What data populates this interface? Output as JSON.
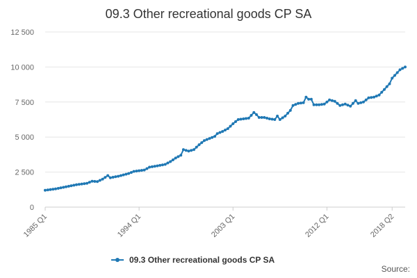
{
  "title": "09.3 Other recreational goods CP SA",
  "source_label": "Source:",
  "chart_data": {
    "type": "line",
    "title": "09.3 Other recreational goods CP SA",
    "xlabel": "",
    "ylabel": "",
    "ylim": [
      0,
      12500
    ],
    "yticks": [
      0,
      2500,
      5000,
      7500,
      10000,
      12500
    ],
    "ytick_labels": [
      "0",
      "2 500",
      "5 000",
      "7 500",
      "10 000",
      "12 500"
    ],
    "x_range": [
      "1985 Q1",
      "2018 Q2"
    ],
    "xtick_labels": [
      "1985 Q1",
      "1994 Q1",
      "2003 Q1",
      "2012 Q1",
      "2018 Q2"
    ],
    "grid": true,
    "legend_position": "bottom",
    "color": "#1f78b4",
    "series": [
      {
        "name": "09.3 Other recreational goods CP SA",
        "points": [
          [
            "1985 Q1",
            1200
          ],
          [
            "1986 Q1",
            1300
          ],
          [
            "1987 Q1",
            1450
          ],
          [
            "1988 Q1",
            1600
          ],
          [
            "1989 Q1",
            1700
          ],
          [
            "1989 Q3",
            1850
          ],
          [
            "1990 Q1",
            1820
          ],
          [
            "1990 Q3",
            2000
          ],
          [
            "1991 Q1",
            2250
          ],
          [
            "1991 Q2",
            2100
          ],
          [
            "1992 Q1",
            2200
          ],
          [
            "1993 Q1",
            2400
          ],
          [
            "1993 Q3",
            2550
          ],
          [
            "1994 Q1",
            2600
          ],
          [
            "1994 Q3",
            2650
          ],
          [
            "1995 Q1",
            2850
          ],
          [
            "1996 Q1",
            2980
          ],
          [
            "1996 Q3",
            3050
          ],
          [
            "1997 Q1",
            3250
          ],
          [
            "1997 Q3",
            3500
          ],
          [
            "1998 Q1",
            3700
          ],
          [
            "1998 Q2",
            4100
          ],
          [
            "1998 Q4",
            4000
          ],
          [
            "1999 Q2",
            4100
          ],
          [
            "1999 Q4",
            4450
          ],
          [
            "2000 Q2",
            4750
          ],
          [
            "2000 Q4",
            4900
          ],
          [
            "2001 Q2",
            5050
          ],
          [
            "2001 Q3",
            5250
          ],
          [
            "2002 Q1",
            5400
          ],
          [
            "2002 Q3",
            5600
          ],
          [
            "2003 Q1",
            5950
          ],
          [
            "2003 Q3",
            6250
          ],
          [
            "2004 Q1",
            6300
          ],
          [
            "2004 Q3",
            6350
          ],
          [
            "2005 Q1",
            6750
          ],
          [
            "2005 Q2",
            6600
          ],
          [
            "2005 Q3",
            6400
          ],
          [
            "2006 Q1",
            6400
          ],
          [
            "2006 Q3",
            6300
          ],
          [
            "2007 Q1",
            6250
          ],
          [
            "2007 Q2",
            6500
          ],
          [
            "2007 Q3",
            6250
          ],
          [
            "2008 Q1",
            6500
          ],
          [
            "2008 Q3",
            6900
          ],
          [
            "2008 Q4",
            7250
          ],
          [
            "2009 Q2",
            7400
          ],
          [
            "2009 Q4",
            7450
          ],
          [
            "2010 Q1",
            7850
          ],
          [
            "2010 Q2",
            7700
          ],
          [
            "2010 Q3",
            7700
          ],
          [
            "2010 Q4",
            7300
          ],
          [
            "2011 Q2",
            7300
          ],
          [
            "2011 Q4",
            7350
          ],
          [
            "2012 Q2",
            7650
          ],
          [
            "2012 Q4",
            7550
          ],
          [
            "2013 Q2",
            7250
          ],
          [
            "2013 Q4",
            7350
          ],
          [
            "2014 Q2",
            7200
          ],
          [
            "2014 Q4",
            7600
          ],
          [
            "2015 Q1",
            7400
          ],
          [
            "2015 Q3",
            7500
          ],
          [
            "2016 Q1",
            7800
          ],
          [
            "2016 Q3",
            7850
          ],
          [
            "2017 Q1",
            8000
          ],
          [
            "2017 Q3",
            8400
          ],
          [
            "2018 Q1",
            8800
          ],
          [
            "2018 Q2",
            9200
          ],
          [
            "2019 Q1",
            9800
          ],
          [
            "2019 Q3",
            10000
          ]
        ]
      }
    ]
  }
}
